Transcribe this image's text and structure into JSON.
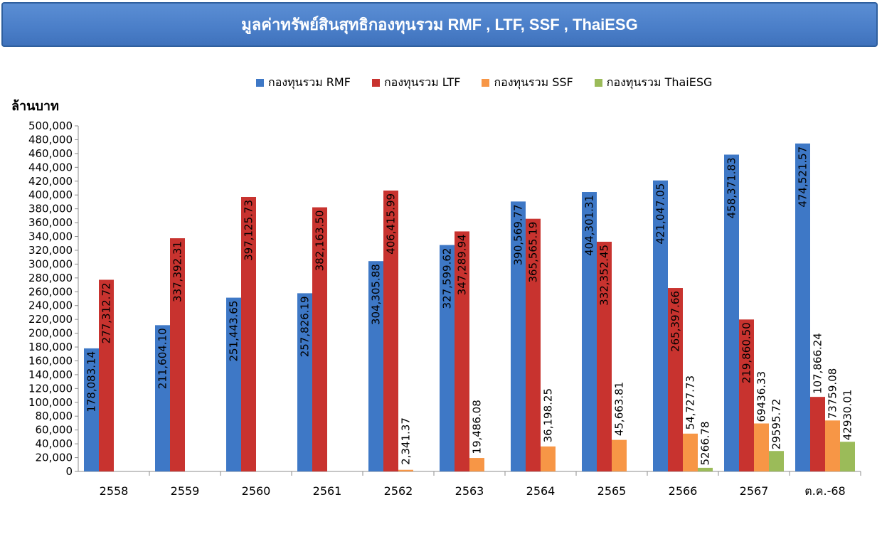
{
  "chart_data": {
    "type": "bar",
    "title": "มูลค่าทรัพย์สินสุทธิกองทุนรวม RMF , LTF, SSF , ThaiESG",
    "ylabel": "ล้านบาท",
    "xlabel": "",
    "ylim": [
      0,
      500000
    ],
    "ytick_step": 20000,
    "yticks": [
      "0",
      "20,000",
      "40,000",
      "60,000",
      "80,000",
      "100,000",
      "120,000",
      "140,000",
      "160,000",
      "180,000",
      "200,000",
      "220,000",
      "240,000",
      "260,000",
      "280,000",
      "300,000",
      "320,000",
      "340,000",
      "360,000",
      "380,000",
      "400,000",
      "420,000",
      "440,000",
      "460,000",
      "480,000",
      "500,000"
    ],
    "categories": [
      "2558",
      "2559",
      "2560",
      "2561",
      "2562",
      "2563",
      "2564",
      "2565",
      "2566",
      "2567",
      "ต.ค.-68"
    ],
    "series": [
      {
        "name": "กองทุนรวม RMF",
        "color": "#3e78c6",
        "values": [
          178083.14,
          211604.1,
          251443.65,
          257826.19,
          304305.88,
          327599.62,
          390569.77,
          404301.31,
          421047.05,
          458371.83,
          474521.57
        ],
        "labels": [
          "178,083.14",
          "211,604.10",
          "251,443.65",
          "257,826.19",
          "304,305.88",
          "327,599.62",
          "390,569.77",
          "404,301.31",
          "421,047.05",
          "458,371.83",
          "474,521.57"
        ]
      },
      {
        "name": "กองทุนรวม LTF",
        "color": "#c8332f",
        "values": [
          277312.72,
          337392.31,
          397125.73,
          382163.5,
          406415.99,
          347289.94,
          365565.19,
          332352.45,
          265397.66,
          219860.5,
          107866.24
        ],
        "labels": [
          "277,312.72",
          "337,392.31",
          "397,125.73",
          "382,163.50",
          "406,415.99",
          "347,289.94",
          "365,565.19",
          "332,352.45",
          "265,397.66",
          "219,860.50",
          "107,866.24"
        ]
      },
      {
        "name": "กองทุนรวม SSF",
        "color": "#f79646",
        "values": [
          null,
          null,
          null,
          null,
          2341.37,
          19486.08,
          36198.25,
          45663.81,
          54727.73,
          69436.33,
          73759.08
        ],
        "labels": [
          null,
          null,
          null,
          null,
          "2,341.37",
          "19,486.08",
          "36,198.25",
          "45,663.81",
          "54,727.73",
          "69436.33",
          "73759.08"
        ]
      },
      {
        "name": "กองทุนรวม ThaiESG",
        "color": "#9bbb59",
        "values": [
          null,
          null,
          null,
          null,
          null,
          null,
          null,
          null,
          5266.78,
          29595.72,
          42930.01
        ],
        "labels": [
          null,
          null,
          null,
          null,
          null,
          null,
          null,
          null,
          "5266.78",
          "29595.72",
          "42930.01"
        ]
      }
    ]
  }
}
